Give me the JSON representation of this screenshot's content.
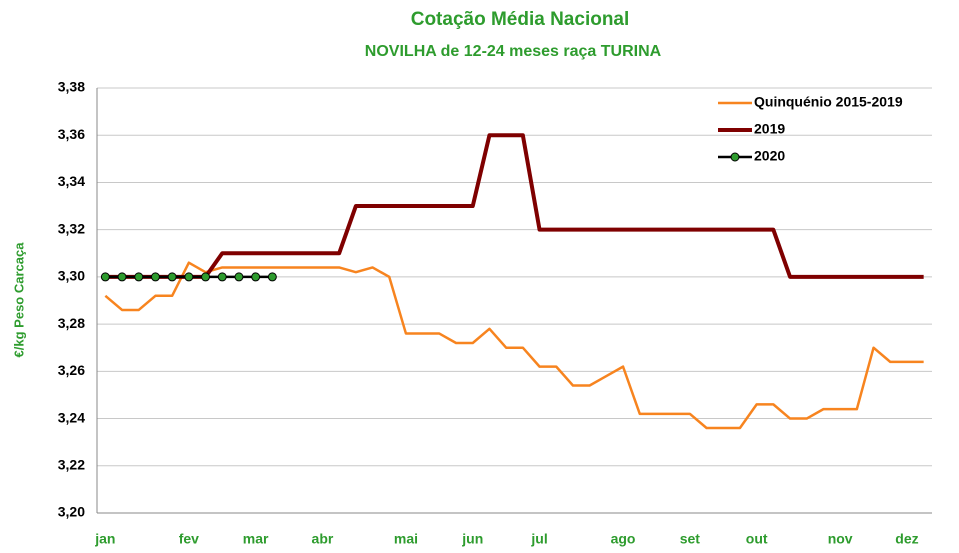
{
  "chart_data": {
    "type": "line",
    "title": "Cotação Média Nacional",
    "subtitle": "NOVILHA de 12-24 meses  raça TURINA",
    "y_label": "€/kg Peso Carcaça",
    "categories": [
      "jan",
      null,
      null,
      null,
      null,
      "fev",
      null,
      null,
      null,
      "mar",
      null,
      null,
      null,
      "abr",
      null,
      null,
      null,
      null,
      "mai",
      null,
      null,
      null,
      "jun",
      null,
      null,
      null,
      "jul",
      null,
      null,
      null,
      null,
      "ago",
      null,
      null,
      null,
      "set",
      null,
      null,
      null,
      "out",
      null,
      null,
      null,
      null,
      "nov",
      null,
      null,
      null,
      "dez",
      null
    ],
    "series": [
      {
        "name": "Quinquénio 2015-2019",
        "color": "#f7841f",
        "values": [
          3.292,
          3.286,
          3.286,
          3.292,
          3.292,
          3.306,
          3.302,
          3.304,
          3.304,
          3.304,
          3.304,
          3.304,
          3.304,
          3.304,
          3.304,
          3.302,
          3.304,
          3.3,
          3.276,
          3.276,
          3.276,
          3.272,
          3.272,
          3.278,
          3.27,
          3.27,
          3.262,
          3.262,
          3.254,
          3.254,
          3.258,
          3.262,
          3.242,
          3.242,
          3.242,
          3.242,
          3.236,
          3.236,
          3.236,
          3.246,
          3.246,
          3.24,
          3.24,
          3.244,
          3.244,
          3.244,
          3.27,
          3.264,
          3.264,
          3.264
        ]
      },
      {
        "name": "2019",
        "color": "#7f0000",
        "values": [
          3.3,
          3.3,
          3.3,
          3.3,
          3.3,
          3.3,
          3.3,
          3.31,
          3.31,
          3.31,
          3.31,
          3.31,
          3.31,
          3.31,
          3.31,
          3.33,
          3.33,
          3.33,
          3.33,
          3.33,
          3.33,
          3.33,
          3.33,
          3.36,
          3.36,
          3.36,
          3.32,
          3.32,
          3.32,
          3.32,
          3.32,
          3.32,
          3.32,
          3.32,
          3.32,
          3.32,
          3.32,
          3.32,
          3.32,
          3.32,
          3.32,
          3.3,
          3.3,
          3.3,
          3.3,
          3.3,
          3.3,
          3.3,
          3.3,
          3.3
        ]
      },
      {
        "name": "2020",
        "color": "#000000",
        "marker_color": "#2e9c2e",
        "values": [
          3.3,
          3.3,
          3.3,
          3.3,
          3.3,
          3.3,
          3.3,
          3.3,
          3.3,
          3.3,
          3.3,
          null,
          null,
          null,
          null,
          null,
          null,
          null,
          null,
          null,
          null,
          null,
          null,
          null,
          null,
          null,
          null,
          null,
          null,
          null,
          null,
          null,
          null,
          null,
          null,
          null,
          null,
          null,
          null,
          null,
          null,
          null,
          null,
          null,
          null,
          null,
          null,
          null,
          null,
          null
        ]
      }
    ],
    "ylim": [
      3.2,
      3.38
    ],
    "yticks": [
      {
        "value": 3.2,
        "label": "3,20"
      },
      {
        "value": 3.22,
        "label": "3,22"
      },
      {
        "value": 3.24,
        "label": "3,24"
      },
      {
        "value": 3.26,
        "label": "3,26"
      },
      {
        "value": 3.28,
        "label": "3,28"
      },
      {
        "value": 3.3,
        "label": "3,30"
      },
      {
        "value": 3.32,
        "label": "3,32"
      },
      {
        "value": 3.34,
        "label": "3,34"
      },
      {
        "value": 3.36,
        "label": "3,36"
      },
      {
        "value": 3.38,
        "label": "3,38"
      }
    ],
    "grid": true,
    "legend": "top-right",
    "text_color": "#2e9c2e"
  }
}
